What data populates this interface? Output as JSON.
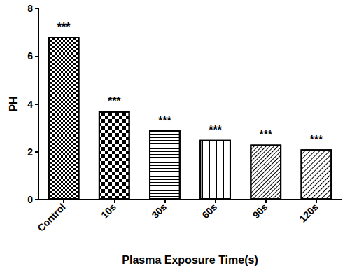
{
  "chart_data": {
    "type": "bar",
    "x_label": "Plasma Exposure Time(s)",
    "y_label": "PH",
    "categories": [
      "Control",
      "10s",
      "30s",
      "60s",
      "90s",
      "120s"
    ],
    "values": [
      6.8,
      3.7,
      2.9,
      2.5,
      2.3,
      2.1
    ],
    "annotations": [
      "***",
      "***",
      "***",
      "***",
      "***",
      "***"
    ],
    "color": "#000000",
    "ylim": [
      0,
      8
    ],
    "yticks": [
      0,
      2,
      4,
      6,
      8
    ],
    "grid": false
  }
}
